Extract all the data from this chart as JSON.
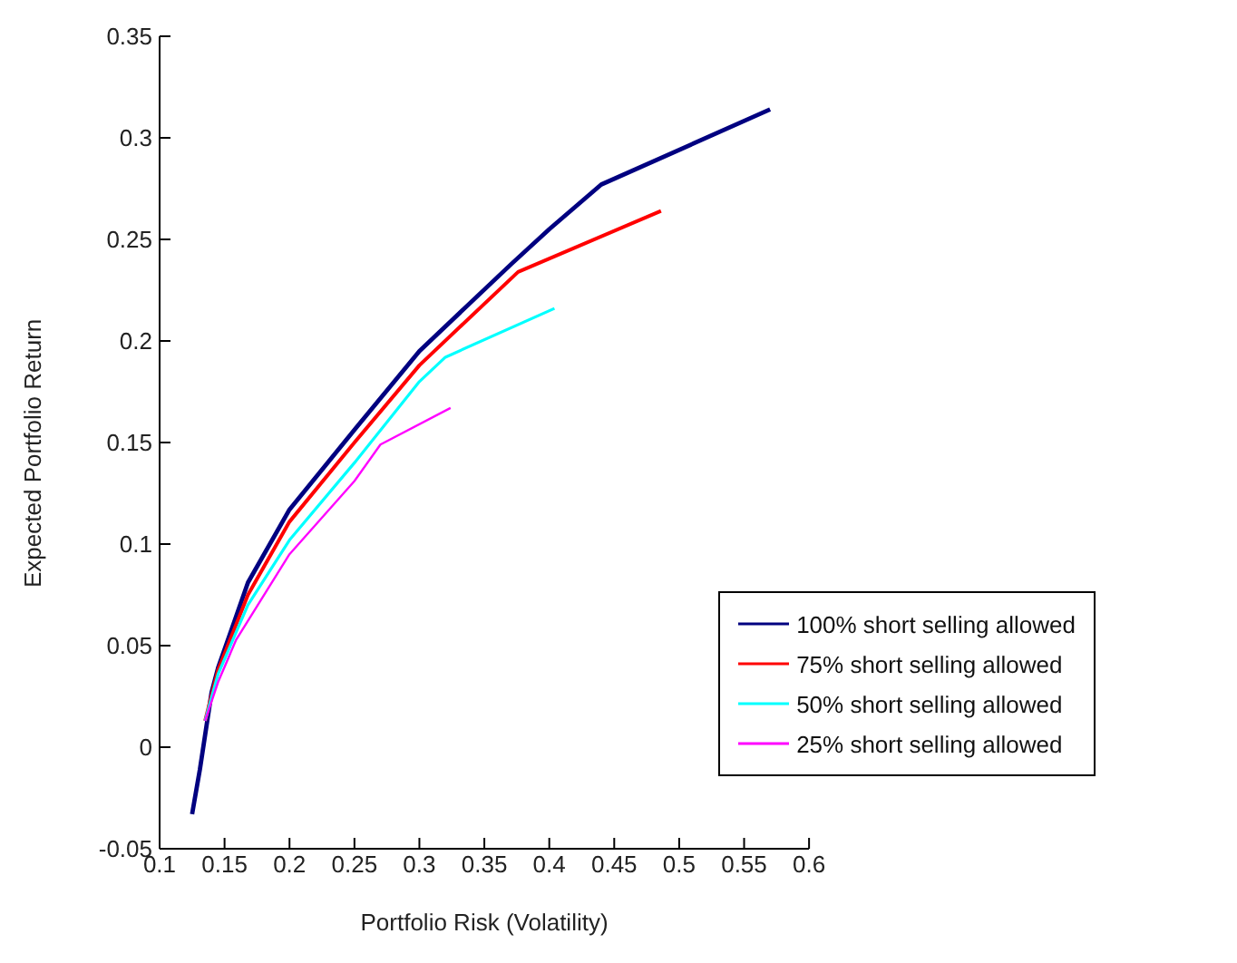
{
  "chart_data": {
    "type": "line",
    "xlabel": "Portfolio Risk (Volatility)",
    "ylabel": "Expected Portfolio Return",
    "xlim": [
      0.1,
      0.6
    ],
    "xticks": [
      0.1,
      0.15,
      0.2,
      0.25,
      0.3,
      0.35,
      0.4,
      0.45,
      0.5,
      0.55,
      0.6
    ],
    "ylim": [
      -0.05,
      0.35
    ],
    "yticks": [
      -0.05,
      0,
      0.05,
      0.1,
      0.15,
      0.2,
      0.25,
      0.3,
      0.35
    ],
    "grid": false,
    "legend": "bottom right",
    "marker": "none",
    "line_style": "solid",
    "series": [
      {
        "name": "100% short selling allowed",
        "color": "#000080",
        "x": [
          0.125,
          0.131,
          0.14,
          0.145,
          0.168,
          0.2,
          0.251,
          0.3,
          0.371,
          0.4,
          0.44,
          0.57
        ],
        "values": [
          -0.033,
          -0.011,
          0.027,
          0.039,
          0.081,
          0.117,
          0.157,
          0.195,
          0.238,
          0.255,
          0.277,
          0.314
        ]
      },
      {
        "name": "75% short selling allowed",
        "color": "#ff0000",
        "x": [
          0.135,
          0.145,
          0.168,
          0.2,
          0.25,
          0.3,
          0.376,
          0.486
        ],
        "values": [
          0.013,
          0.038,
          0.075,
          0.111,
          0.15,
          0.188,
          0.234,
          0.264
        ]
      },
      {
        "name": "50% short selling allowed",
        "color": "#00ffff",
        "x": [
          0.135,
          0.145,
          0.168,
          0.2,
          0.25,
          0.3,
          0.32,
          0.404
        ],
        "values": [
          0.013,
          0.036,
          0.07,
          0.102,
          0.14,
          0.18,
          0.192,
          0.216
        ]
      },
      {
        "name": "25% short selling allowed",
        "color": "#ff00ff",
        "x": [
          0.135,
          0.145,
          0.159,
          0.2,
          0.25,
          0.27,
          0.324
        ],
        "values": [
          0.013,
          0.032,
          0.053,
          0.095,
          0.131,
          0.149,
          0.167
        ]
      }
    ]
  }
}
